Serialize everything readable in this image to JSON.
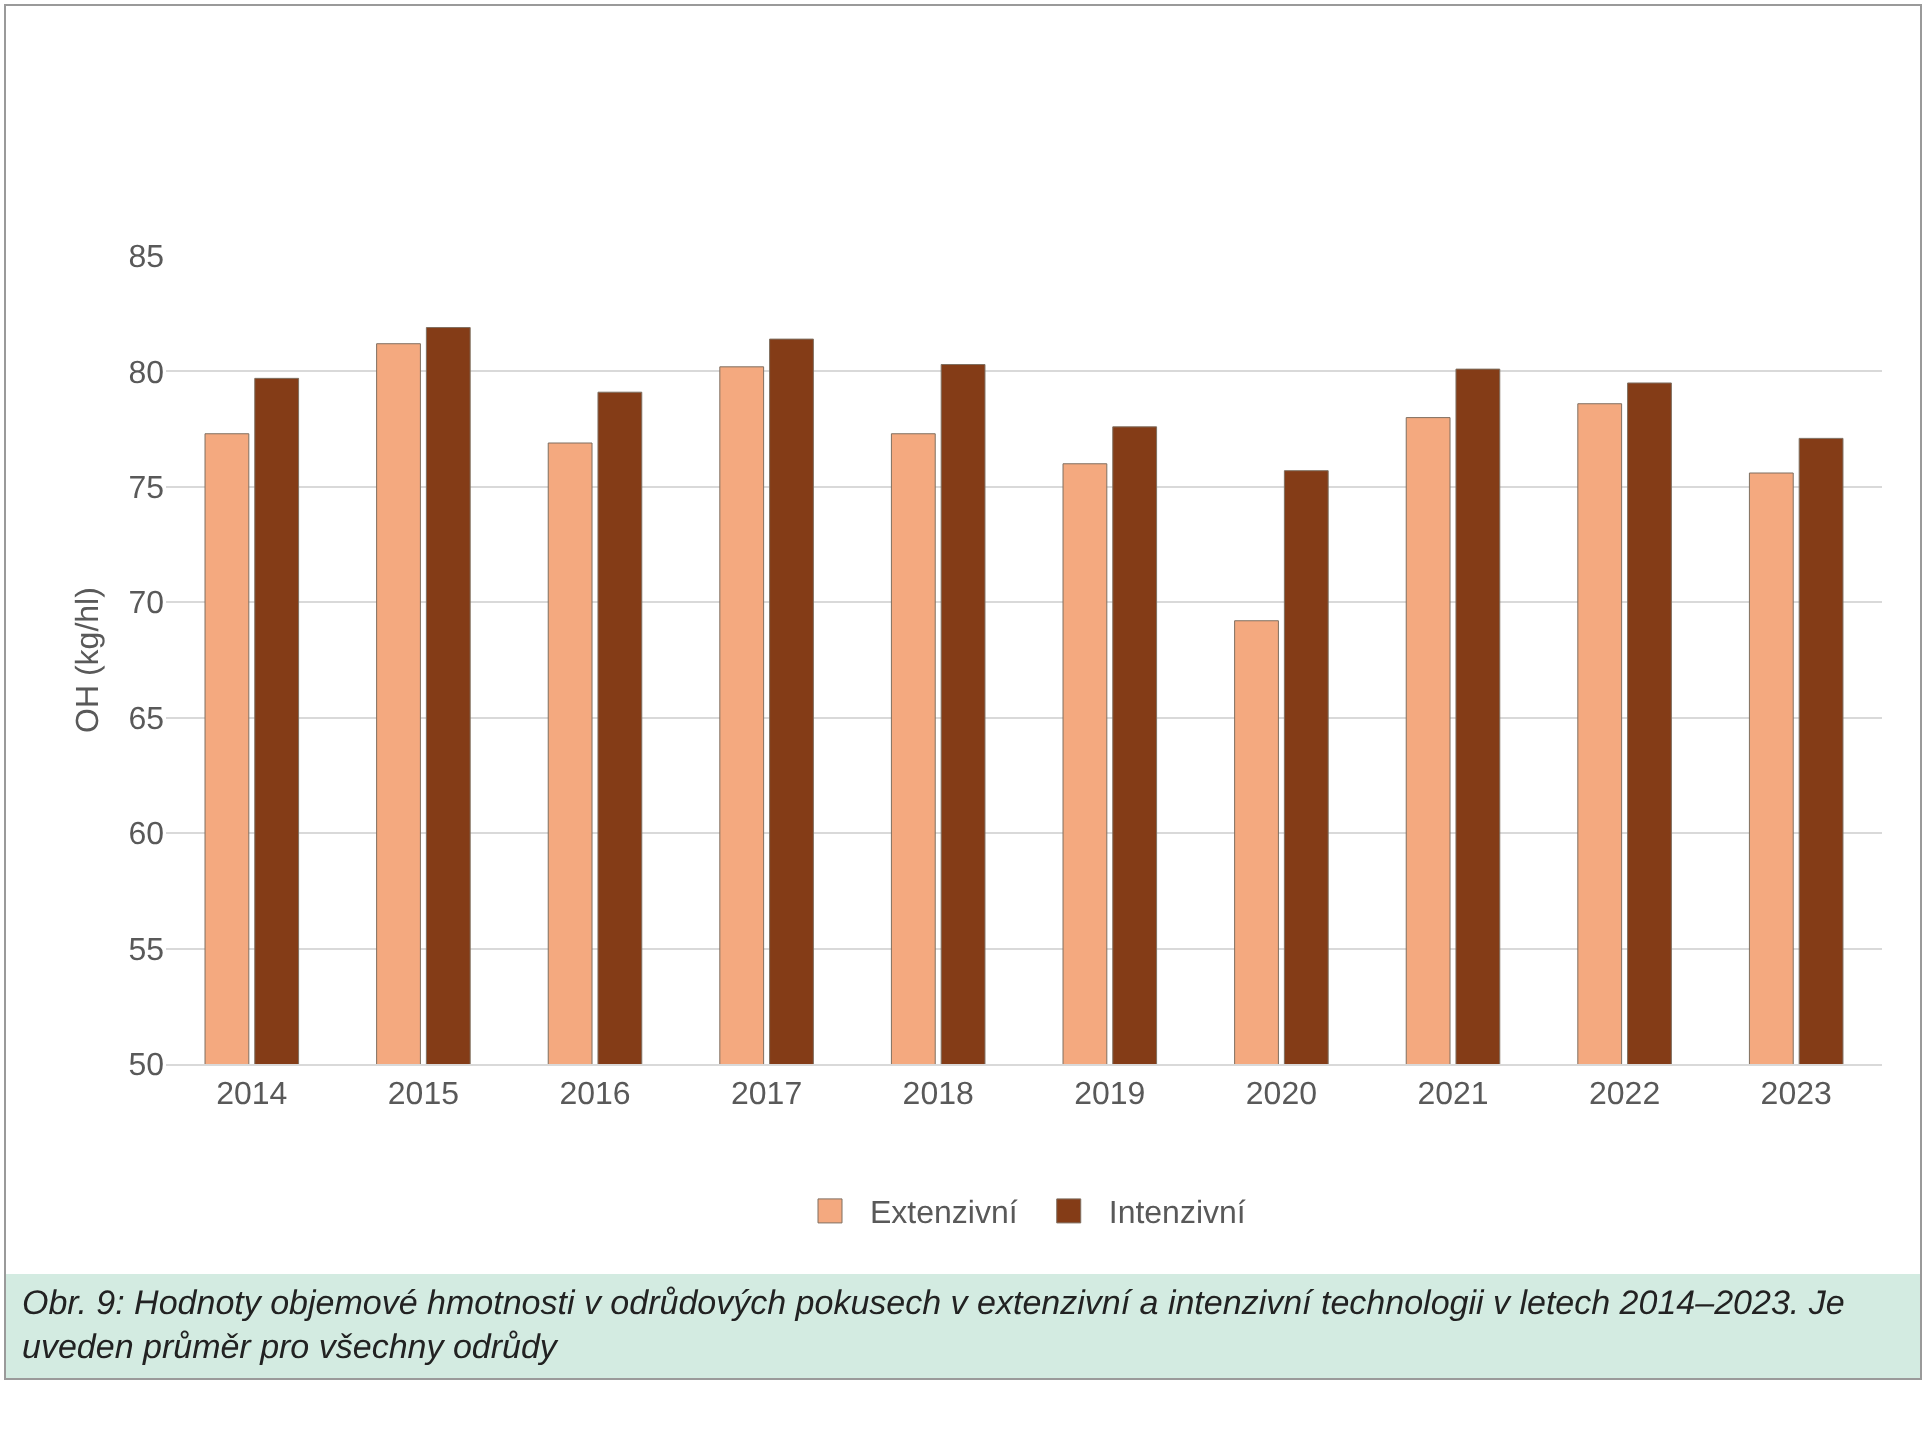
{
  "chart_data": {
    "type": "bar",
    "ylabel": "OH (kg/hl)",
    "categories": [
      "2014",
      "2015",
      "2016",
      "2017",
      "2018",
      "2019",
      "2020",
      "2021",
      "2022",
      "2023"
    ],
    "series": [
      {
        "name": "Extenzivní",
        "color": "#f4a97f",
        "values": [
          77.3,
          81.2,
          76.9,
          80.2,
          77.3,
          76.0,
          69.2,
          78.0,
          78.6,
          75.6
        ]
      },
      {
        "name": "Intenzivní",
        "color": "#843c17",
        "values": [
          79.7,
          81.9,
          79.1,
          81.4,
          80.3,
          77.6,
          75.7,
          80.1,
          79.5,
          77.1
        ]
      }
    ],
    "ylim": [
      50,
      85
    ],
    "yticks": [
      50,
      55,
      60,
      65,
      70,
      75,
      80,
      85
    ],
    "grid": "y",
    "legend": "bottom",
    "annotations": [
      "Obr. 9: Hodnoty objemové hmotnosti v odrůdových pokusech v extenzivní a intenzivní technologii v letech 2014–2023. Je uveden průměr pro všechny odrůdy"
    ]
  }
}
